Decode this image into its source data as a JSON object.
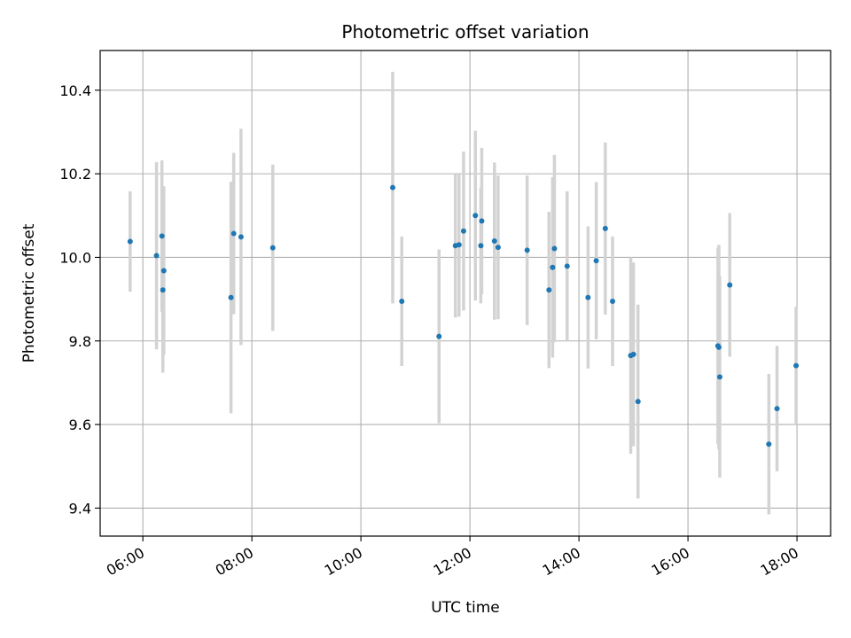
{
  "chart_data": {
    "type": "scatter",
    "title": "Photometric offset variation",
    "xlabel": "UTC time",
    "ylabel": "Photometric offset",
    "x_axis": "time",
    "xlim": [
      "05:13",
      "18:37"
    ],
    "ylim": [
      9.333,
      10.495
    ],
    "x_ticks": [
      "06:00",
      "08:00",
      "10:00",
      "12:00",
      "14:00",
      "16:00",
      "18:00"
    ],
    "y_ticks": [
      9.4,
      9.6,
      9.8,
      10.0,
      10.2,
      10.4
    ],
    "y_tick_labels": [
      "9.4",
      "9.6",
      "9.8",
      "10.0",
      "10.2",
      "10.4"
    ],
    "grid": true,
    "marker_color": "#1f77b4",
    "errorbar_color": "#d3d3d3",
    "points": [
      {
        "t": "05:46",
        "y": 10.038,
        "lo": 9.918,
        "hi": 10.158
      },
      {
        "t": "06:15",
        "y": 10.004,
        "lo": 9.78,
        "hi": 10.228
      },
      {
        "t": "06:21",
        "y": 10.051,
        "lo": 9.87,
        "hi": 10.232
      },
      {
        "t": "06:22",
        "y": 9.922,
        "lo": 9.724,
        "hi": 10.12
      },
      {
        "t": "06:23",
        "y": 9.968,
        "lo": 9.766,
        "hi": 10.17
      },
      {
        "t": "07:37",
        "y": 9.904,
        "lo": 9.627,
        "hi": 10.181
      },
      {
        "t": "07:40",
        "y": 10.057,
        "lo": 9.864,
        "hi": 10.25
      },
      {
        "t": "07:48",
        "y": 10.049,
        "lo": 9.79,
        "hi": 10.308
      },
      {
        "t": "08:23",
        "y": 10.023,
        "lo": 9.824,
        "hi": 10.222
      },
      {
        "t": "10:35",
        "y": 10.167,
        "lo": 9.89,
        "hi": 10.444
      },
      {
        "t": "10:45",
        "y": 9.895,
        "lo": 9.74,
        "hi": 10.05
      },
      {
        "t": "11:26",
        "y": 9.811,
        "lo": 9.603,
        "hi": 10.019
      },
      {
        "t": "11:44",
        "y": 10.028,
        "lo": 9.856,
        "hi": 10.2
      },
      {
        "t": "11:48",
        "y": 10.03,
        "lo": 9.858,
        "hi": 10.202
      },
      {
        "t": "11:53",
        "y": 10.063,
        "lo": 9.873,
        "hi": 10.253
      },
      {
        "t": "12:06",
        "y": 10.1,
        "lo": 9.897,
        "hi": 10.303
      },
      {
        "t": "12:12",
        "y": 10.028,
        "lo": 9.89,
        "hi": 10.166
      },
      {
        "t": "12:13",
        "y": 10.087,
        "lo": 9.912,
        "hi": 10.262
      },
      {
        "t": "12:27",
        "y": 10.039,
        "lo": 9.851,
        "hi": 10.227
      },
      {
        "t": "12:31",
        "y": 10.024,
        "lo": 9.852,
        "hi": 10.196
      },
      {
        "t": "13:03",
        "y": 10.017,
        "lo": 9.838,
        "hi": 10.196
      },
      {
        "t": "13:27",
        "y": 9.922,
        "lo": 9.735,
        "hi": 10.109
      },
      {
        "t": "13:31",
        "y": 9.976,
        "lo": 9.76,
        "hi": 10.192
      },
      {
        "t": "13:33",
        "y": 10.021,
        "lo": 9.797,
        "hi": 10.245
      },
      {
        "t": "13:47",
        "y": 9.979,
        "lo": 9.8,
        "hi": 10.158
      },
      {
        "t": "14:10",
        "y": 9.904,
        "lo": 9.734,
        "hi": 10.074
      },
      {
        "t": "14:19",
        "y": 9.992,
        "lo": 9.804,
        "hi": 10.18
      },
      {
        "t": "14:29",
        "y": 10.069,
        "lo": 9.863,
        "hi": 10.275
      },
      {
        "t": "14:37",
        "y": 9.895,
        "lo": 9.74,
        "hi": 10.05
      },
      {
        "t": "14:57",
        "y": 9.765,
        "lo": 9.53,
        "hi": 10.0
      },
      {
        "t": "15:00",
        "y": 9.768,
        "lo": 9.548,
        "hi": 9.988
      },
      {
        "t": "15:05",
        "y": 9.655,
        "lo": 9.423,
        "hi": 9.887
      },
      {
        "t": "16:33",
        "y": 9.788,
        "lo": 9.553,
        "hi": 10.023
      },
      {
        "t": "16:34",
        "y": 9.785,
        "lo": 9.54,
        "hi": 10.03
      },
      {
        "t": "16:35",
        "y": 9.714,
        "lo": 9.473,
        "hi": 9.955
      },
      {
        "t": "16:46",
        "y": 9.934,
        "lo": 9.762,
        "hi": 10.106
      },
      {
        "t": "17:29",
        "y": 9.553,
        "lo": 9.385,
        "hi": 9.721
      },
      {
        "t": "17:38",
        "y": 9.638,
        "lo": 9.488,
        "hi": 9.788
      },
      {
        "t": "17:59",
        "y": 9.741,
        "lo": 9.6,
        "hi": 9.882
      }
    ]
  }
}
